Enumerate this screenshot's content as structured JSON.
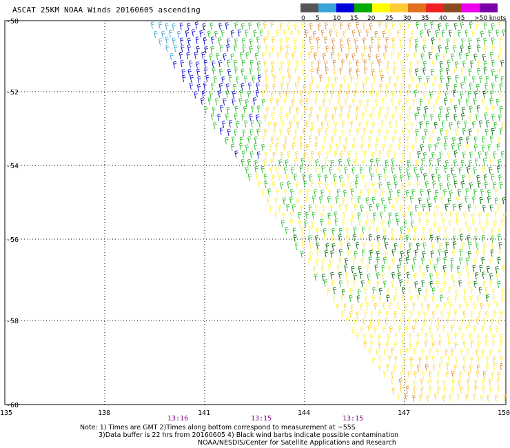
{
  "title": "ASCAT 25KM NOAA Winds 20160605 ascending",
  "legend": {
    "labels": [
      "0",
      "5",
      "10",
      "15",
      "20",
      "25",
      "30",
      "35",
      "40",
      "45",
      ">50 knots"
    ],
    "colors": [
      "#555555",
      "#3aa3d8",
      "#0000dd",
      "#00aa00",
      "#ffff00",
      "#ffcc33",
      "#e07020",
      "#ee2222",
      "#8a4a20",
      "#ee00ee",
      "#7a00aa"
    ]
  },
  "map": {
    "lon_ticks": [
      "135",
      "138",
      "141",
      "144",
      "147",
      "150"
    ],
    "lat_ticks": [
      "-50",
      "-52",
      "-54",
      "-56",
      "-58",
      "-60"
    ],
    "time_labels": [
      "13:16",
      "13:15",
      "13:15"
    ],
    "barb_colors": {
      "light_blue": "#3aa3d8",
      "blue": "#0000cc",
      "green": "#22bb22",
      "dark_green": "#006600",
      "yellow": "#ffee33",
      "light_orange": "#ffcc33",
      "orange": "#dd8833",
      "black": "#000000"
    }
  },
  "notes": {
    "line1": "Note: 1) Times are GMT 2)Times along bottom correspond to measurement at ~55S",
    "line2": "3)Data buffer is 22 hrs from 20160605 4) Black wind barbs indicate possible contamination",
    "line3": "NOAA/NESDIS/Center for Satellite Applications and Research"
  }
}
